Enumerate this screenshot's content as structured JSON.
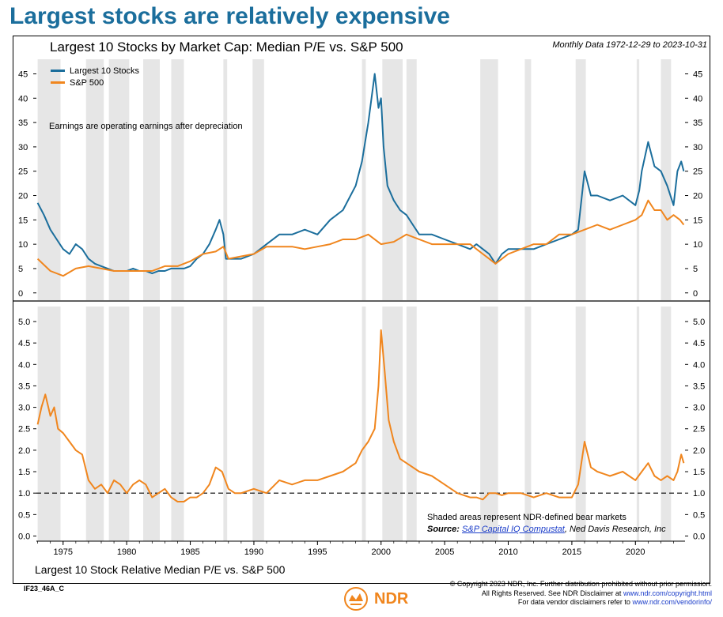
{
  "headline": "Largest stocks are relatively expensive",
  "date_range": "Monthly Data 1972-12-29 to 2023-10-31",
  "note": "Earnings are operating earnings after depreciation",
  "bear_note": "Shaded areas represent NDR-defined bear markets",
  "source_label": "Source:",
  "source_link": "S&P Capital IQ Compustat",
  "source_rest": ", Ned Davis Research, Inc",
  "code": "IF23_46A_C",
  "copyright_lines": [
    "© Copyright 2023 NDR, Inc. Further distribution prohibited without prior permission.",
    "All Rights Reserved. See NDR Disclaimer at",
    "www.ndr.com/copyright.html",
    "For data vendor disclaimers refer to",
    "www.ndr.com/vendorinfo/"
  ],
  "logo_text": "NDR",
  "colors": {
    "largest10": "#1b6e9c",
    "sp500": "#f0861e",
    "bear_shade": "#e6e6e6",
    "headline": "#1b6e9c"
  },
  "chart_data": [
    {
      "type": "line",
      "title": "Largest 10 Stocks by Market Cap: Median P/E vs. S&P 500",
      "x_ticks": [
        1975,
        1980,
        1985,
        1990,
        1995,
        2000,
        2005,
        2010,
        2015,
        2020
      ],
      "xlim": [
        1972.9,
        2023.9
      ],
      "ylim": [
        -1.5,
        48
      ],
      "y_ticks": [
        0,
        5,
        10,
        15,
        20,
        25,
        30,
        35,
        40,
        45
      ],
      "grid": false,
      "legend_placement": "top-left",
      "bear_markets": [
        [
          1973.0,
          1974.8
        ],
        [
          1976.8,
          1978.2
        ],
        [
          1978.6,
          1980.2
        ],
        [
          1981.3,
          1982.6
        ],
        [
          1983.5,
          1984.5
        ],
        [
          1987.6,
          1987.9
        ],
        [
          1989.9,
          1990.8
        ],
        [
          1998.5,
          1998.8
        ],
        [
          2000.1,
          2001.7
        ],
        [
          2002.0,
          2002.8
        ],
        [
          2007.8,
          2009.2
        ],
        [
          2011.3,
          2011.8
        ],
        [
          2015.3,
          2016.1
        ],
        [
          2020.1,
          2020.3
        ],
        [
          2022.0,
          2022.8
        ]
      ],
      "series": [
        {
          "name": "Largest 10 Stocks",
          "x": [
            1973.0,
            1973.5,
            1974.0,
            1974.5,
            1975.0,
            1975.5,
            1976.0,
            1976.5,
            1977.0,
            1977.5,
            1978.0,
            1978.5,
            1979.0,
            1979.5,
            1980.0,
            1980.5,
            1981.0,
            1981.5,
            1982.0,
            1982.5,
            1983.0,
            1983.5,
            1984.0,
            1984.5,
            1985.0,
            1985.5,
            1986.0,
            1986.5,
            1987.0,
            1987.3,
            1987.6,
            1987.8,
            1988.0,
            1988.5,
            1989.0,
            1990.0,
            1991.0,
            1992.0,
            1993.0,
            1994.0,
            1995.0,
            1996.0,
            1997.0,
            1998.0,
            1998.5,
            1999.0,
            1999.5,
            1999.8,
            2000.0,
            2000.2,
            2000.5,
            2001.0,
            2001.5,
            2002.0,
            2002.5,
            2003.0,
            2004.0,
            2005.0,
            2006.0,
            2007.0,
            2007.5,
            2008.0,
            2008.5,
            2009.0,
            2009.5,
            2010.0,
            2011.0,
            2012.0,
            2013.0,
            2014.0,
            2015.0,
            2015.5,
            2016.0,
            2016.5,
            2017.0,
            2018.0,
            2019.0,
            2020.0,
            2020.3,
            2020.5,
            2021.0,
            2021.5,
            2022.0,
            2022.5,
            2023.0,
            2023.3,
            2023.6,
            2023.8
          ],
          "values": [
            18.5,
            16,
            13,
            11,
            9,
            8,
            10,
            9,
            7,
            6,
            5.5,
            5,
            4.5,
            4.5,
            4.5,
            5,
            4.5,
            4.5,
            4,
            4.5,
            4.5,
            5,
            5,
            5,
            5.5,
            7,
            8,
            10,
            13,
            15,
            12,
            7,
            7,
            7,
            7,
            8,
            10,
            12,
            12,
            13,
            12,
            15,
            17,
            22,
            27,
            35,
            45,
            38,
            40,
            30,
            22,
            19,
            17,
            16,
            14,
            12,
            12,
            11,
            10,
            9,
            10,
            9,
            8,
            6,
            8,
            9,
            9,
            9,
            10,
            11,
            12,
            13,
            25,
            20,
            20,
            19,
            20,
            18,
            21,
            25,
            31,
            26,
            25,
            22,
            18,
            25,
            27,
            25
          ]
        },
        {
          "name": "S&P 500",
          "x": [
            1973.0,
            1974.0,
            1975.0,
            1976.0,
            1977.0,
            1978.0,
            1979.0,
            1980.0,
            1981.0,
            1982.0,
            1983.0,
            1984.0,
            1985.0,
            1986.0,
            1987.0,
            1987.6,
            1988.0,
            1989.0,
            1990.0,
            1991.0,
            1992.0,
            1993.0,
            1994.0,
            1995.0,
            1996.0,
            1997.0,
            1998.0,
            1999.0,
            2000.0,
            2001.0,
            2002.0,
            2003.0,
            2004.0,
            2005.0,
            2006.0,
            2007.0,
            2008.0,
            2008.5,
            2009.0,
            2010.0,
            2011.0,
            2012.0,
            2013.0,
            2014.0,
            2015.0,
            2016.0,
            2017.0,
            2018.0,
            2019.0,
            2020.0,
            2020.5,
            2021.0,
            2021.5,
            2022.0,
            2022.5,
            2023.0,
            2023.5,
            2023.8
          ],
          "values": [
            7,
            4.5,
            3.5,
            5,
            5.5,
            5,
            4.5,
            4.5,
            4.5,
            4.5,
            5.5,
            5.5,
            6.5,
            8,
            8.5,
            9.5,
            7,
            7.5,
            8,
            9.5,
            9.5,
            9.5,
            9,
            9.5,
            10,
            11,
            11,
            12,
            10,
            10.5,
            12,
            11,
            10,
            10,
            10,
            10,
            8,
            7,
            6,
            8,
            9,
            10,
            10,
            12,
            12,
            13,
            14,
            13,
            14,
            15,
            16,
            19,
            17,
            17,
            15,
            16,
            15,
            14
          ]
        }
      ]
    },
    {
      "type": "line",
      "title": "Largest 10 Stock Relative Median P/E vs. S&P 500",
      "x_ticks": [
        1975,
        1980,
        1985,
        1990,
        1995,
        2000,
        2005,
        2010,
        2015,
        2020
      ],
      "xlim": [
        1972.9,
        2023.9
      ],
      "ylim": [
        -0.12,
        5.35
      ],
      "y_ticks": [
        0.0,
        0.5,
        1.0,
        1.5,
        2.0,
        2.5,
        3.0,
        3.5,
        4.0,
        4.5,
        5.0
      ],
      "y_tick_labels": [
        "0.0",
        "0.5",
        "1.0",
        "1.5",
        "2.0",
        "2.5",
        "3.0",
        "3.5",
        "4.0",
        "4.5",
        "5.0"
      ],
      "reference_line": 1.0,
      "series": [
        {
          "name": "",
          "x": [
            1973.0,
            1973.3,
            1973.6,
            1974.0,
            1974.3,
            1974.6,
            1975.0,
            1975.5,
            1976.0,
            1976.5,
            1977.0,
            1977.5,
            1978.0,
            1978.5,
            1979.0,
            1979.5,
            1980.0,
            1980.5,
            1981.0,
            1981.5,
            1982.0,
            1982.5,
            1983.0,
            1983.5,
            1984.0,
            1984.5,
            1985.0,
            1985.5,
            1986.0,
            1986.5,
            1987.0,
            1987.5,
            1988.0,
            1988.5,
            1989.0,
            1990.0,
            1991.0,
            1992.0,
            1993.0,
            1994.0,
            1995.0,
            1996.0,
            1997.0,
            1998.0,
            1998.5,
            1999.0,
            1999.5,
            1999.8,
            2000.0,
            2000.3,
            2000.6,
            2001.0,
            2001.5,
            2002.0,
            2003.0,
            2004.0,
            2005.0,
            2006.0,
            2007.0,
            2007.5,
            2008.0,
            2008.5,
            2009.0,
            2009.5,
            2010.0,
            2011.0,
            2012.0,
            2013.0,
            2014.0,
            2015.0,
            2015.5,
            2016.0,
            2016.5,
            2017.0,
            2018.0,
            2019.0,
            2020.0,
            2020.5,
            2021.0,
            2021.5,
            2022.0,
            2022.5,
            2023.0,
            2023.3,
            2023.6,
            2023.8
          ],
          "values": [
            2.6,
            3.0,
            3.3,
            2.8,
            3.0,
            2.5,
            2.4,
            2.2,
            2.0,
            1.9,
            1.3,
            1.1,
            1.2,
            1.0,
            1.3,
            1.2,
            1.0,
            1.2,
            1.3,
            1.2,
            0.9,
            1.0,
            1.1,
            0.9,
            0.8,
            0.8,
            0.9,
            0.9,
            1.0,
            1.2,
            1.6,
            1.5,
            1.1,
            1.0,
            1.0,
            1.1,
            1.0,
            1.3,
            1.2,
            1.3,
            1.3,
            1.4,
            1.5,
            1.7,
            2.0,
            2.2,
            2.5,
            3.5,
            4.8,
            3.8,
            2.7,
            2.2,
            1.8,
            1.7,
            1.5,
            1.4,
            1.2,
            1.0,
            0.9,
            0.9,
            0.85,
            1.0,
            1.0,
            0.95,
            1.0,
            1.0,
            0.9,
            1.0,
            0.9,
            0.9,
            1.2,
            2.2,
            1.6,
            1.5,
            1.4,
            1.5,
            1.3,
            1.5,
            1.7,
            1.4,
            1.3,
            1.4,
            1.3,
            1.5,
            1.9,
            1.7
          ]
        }
      ]
    }
  ]
}
